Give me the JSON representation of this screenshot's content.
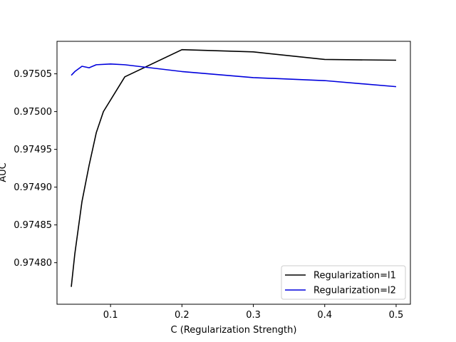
{
  "chart_data": {
    "type": "line",
    "title": "",
    "xlabel": "C (Regularization Strength)",
    "ylabel": "AUC",
    "xlim": [
      0.025,
      0.52
    ],
    "ylim": [
      0.974745,
      0.975093
    ],
    "xticks": [
      0.1,
      0.2,
      0.3,
      0.4,
      0.5
    ],
    "xtick_labels": [
      "0.1",
      "0.2",
      "0.3",
      "0.4",
      "0.5"
    ],
    "yticks": [
      0.9748,
      0.97485,
      0.9749,
      0.97495,
      0.975,
      0.97505
    ],
    "ytick_labels": [
      "0.97480",
      "0.97485",
      "0.97490",
      "0.97495",
      "0.97500",
      "0.97505"
    ],
    "grid": false,
    "legend_position": "bottom-right",
    "series": [
      {
        "name": "Regularization=l1",
        "color": "#000000",
        "x": [
          0.045,
          0.05,
          0.06,
          0.07,
          0.08,
          0.09,
          0.12,
          0.2,
          0.3,
          0.4,
          0.5
        ],
        "y": [
          0.974768,
          0.974812,
          0.974881,
          0.974929,
          0.974972,
          0.975,
          0.975046,
          0.975082,
          0.975079,
          0.975069,
          0.975068
        ]
      },
      {
        "name": "Regularization=l2",
        "color": "#0000dd",
        "x": [
          0.045,
          0.05,
          0.06,
          0.07,
          0.08,
          0.1,
          0.12,
          0.2,
          0.3,
          0.4,
          0.5
        ],
        "y": [
          0.975048,
          0.975053,
          0.97506,
          0.975058,
          0.975062,
          0.975063,
          0.975062,
          0.975053,
          0.975045,
          0.975041,
          0.975033
        ]
      }
    ]
  }
}
